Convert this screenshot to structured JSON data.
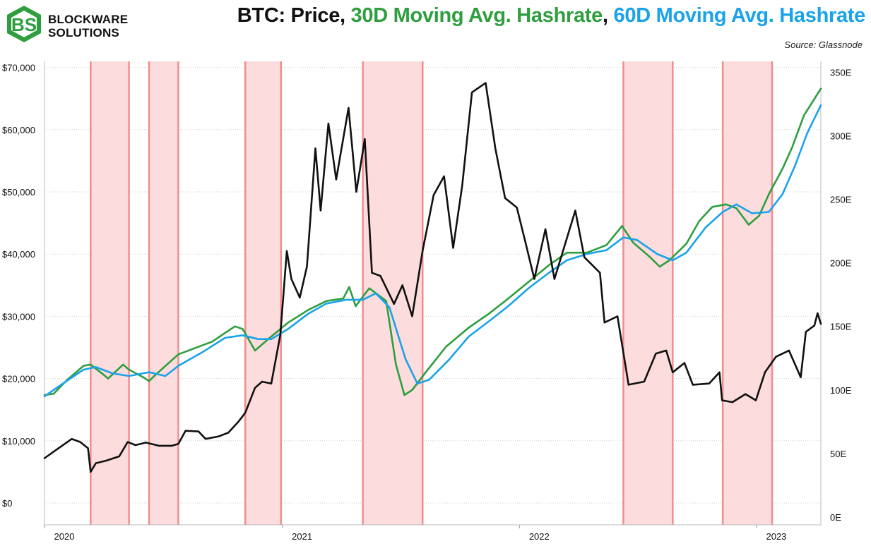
{
  "logo": {
    "line1": "BLOCKWARE",
    "line2": "SOLUTIONS"
  },
  "title": {
    "part1": "BTC: Price",
    "sep1": ", ",
    "part2": "30D Moving Avg. Hashrate",
    "sep2": ", ",
    "part3": "60D Moving Avg. Hashrate"
  },
  "source": "Source: Glassnode",
  "colors": {
    "price": "#111111",
    "hash30": "#2e9e3e",
    "hash60": "#1aa3e8",
    "shade": "#fcdcdc",
    "shade_edge": "#f08e8e"
  },
  "chart_data": {
    "type": "line",
    "title": "BTC: Price, 30D Moving Avg. Hashrate, 60D Moving Avg. Hashrate",
    "x_tick_labels": [
      "2020",
      "2021",
      "2022",
      "2023"
    ],
    "x_ticks": [
      "2020-01-01",
      "2021-01-01",
      "2022-01-01",
      "2023-01-01"
    ],
    "x_range": [
      "2020-01-01",
      "2023-04-10"
    ],
    "y_left": {
      "ticks": [
        0,
        10000,
        20000,
        30000,
        40000,
        50000,
        60000,
        70000
      ],
      "tick_labels": [
        "$0",
        "$10,000",
        "$20,000",
        "$30,000",
        "$40,000",
        "$50,000",
        "$60,000",
        "$70,000"
      ],
      "range": [
        0,
        70000
      ]
    },
    "y_right": {
      "ticks": [
        0,
        50,
        100,
        150,
        200,
        250,
        300,
        350
      ],
      "tick_labels": [
        "0E",
        "50E",
        "100E",
        "150E",
        "200E",
        "250E",
        "300E",
        "350E"
      ],
      "range": [
        0,
        350
      ]
    },
    "grid": "horizontal dotted",
    "shaded_periods": [
      [
        "2020-03-12",
        "2020-05-10"
      ],
      [
        "2020-06-10",
        "2020-07-25"
      ],
      [
        "2020-11-05",
        "2020-12-30"
      ],
      [
        "2021-05-05",
        "2021-08-05"
      ],
      [
        "2022-06-10",
        "2022-08-25"
      ],
      [
        "2022-11-10",
        "2023-01-25"
      ]
    ],
    "series": [
      {
        "name": "BTC: Price",
        "axis": "left",
        "color": "#111111",
        "points": [
          [
            "2020-01-01",
            7200
          ],
          [
            "2020-01-20",
            8600
          ],
          [
            "2020-02-12",
            10300
          ],
          [
            "2020-02-25",
            9800
          ],
          [
            "2020-03-08",
            8800
          ],
          [
            "2020-03-12",
            5000
          ],
          [
            "2020-03-20",
            6400
          ],
          [
            "2020-04-05",
            6800
          ],
          [
            "2020-04-25",
            7500
          ],
          [
            "2020-05-08",
            9800
          ],
          [
            "2020-05-20",
            9300
          ],
          [
            "2020-06-05",
            9700
          ],
          [
            "2020-06-25",
            9200
          ],
          [
            "2020-07-15",
            9200
          ],
          [
            "2020-07-25",
            9500
          ],
          [
            "2020-08-05",
            11600
          ],
          [
            "2020-08-25",
            11500
          ],
          [
            "2020-09-05",
            10300
          ],
          [
            "2020-09-25",
            10700
          ],
          [
            "2020-10-10",
            11300
          ],
          [
            "2020-10-25",
            13000
          ],
          [
            "2020-11-05",
            14500
          ],
          [
            "2020-11-20",
            18500
          ],
          [
            "2020-12-01",
            19500
          ],
          [
            "2020-12-15",
            19200
          ],
          [
            "2020-12-29",
            27000
          ],
          [
            "2021-01-08",
            40500
          ],
          [
            "2021-01-15",
            36000
          ],
          [
            "2021-01-28",
            33000
          ],
          [
            "2021-02-08",
            38000
          ],
          [
            "2021-02-21",
            57000
          ],
          [
            "2021-03-01",
            47000
          ],
          [
            "2021-03-13",
            61000
          ],
          [
            "2021-03-25",
            52000
          ],
          [
            "2021-04-13",
            63500
          ],
          [
            "2021-04-25",
            50000
          ],
          [
            "2021-05-08",
            58500
          ],
          [
            "2021-05-19",
            37000
          ],
          [
            "2021-06-01",
            36500
          ],
          [
            "2021-06-22",
            32000
          ],
          [
            "2021-07-05",
            35000
          ],
          [
            "2021-07-20",
            30000
          ],
          [
            "2021-08-05",
            40500
          ],
          [
            "2021-08-22",
            49500
          ],
          [
            "2021-09-07",
            52500
          ],
          [
            "2021-09-21",
            41000
          ],
          [
            "2021-10-05",
            51000
          ],
          [
            "2021-10-20",
            66000
          ],
          [
            "2021-11-10",
            67500
          ],
          [
            "2021-11-25",
            57000
          ],
          [
            "2021-12-10",
            49000
          ],
          [
            "2021-12-28",
            47500
          ],
          [
            "2022-01-10",
            42000
          ],
          [
            "2022-01-24",
            36000
          ],
          [
            "2022-02-10",
            44000
          ],
          [
            "2022-02-24",
            36000
          ],
          [
            "2022-03-28",
            47000
          ],
          [
            "2022-04-11",
            39500
          ],
          [
            "2022-05-05",
            37000
          ],
          [
            "2022-05-12",
            29000
          ],
          [
            "2022-06-01",
            30000
          ],
          [
            "2022-06-18",
            19000
          ],
          [
            "2022-07-12",
            19500
          ],
          [
            "2022-07-30",
            24000
          ],
          [
            "2022-08-15",
            24500
          ],
          [
            "2022-08-25",
            21000
          ],
          [
            "2022-09-12",
            22500
          ],
          [
            "2022-09-25",
            19000
          ],
          [
            "2022-10-20",
            19200
          ],
          [
            "2022-11-05",
            21000
          ],
          [
            "2022-11-09",
            16500
          ],
          [
            "2022-11-25",
            16200
          ],
          [
            "2022-12-15",
            17500
          ],
          [
            "2022-12-31",
            16500
          ],
          [
            "2023-01-14",
            21000
          ],
          [
            "2023-01-31",
            23500
          ],
          [
            "2023-02-20",
            24500
          ],
          [
            "2023-03-10",
            20200
          ],
          [
            "2023-03-18",
            27500
          ],
          [
            "2023-03-31",
            28500
          ],
          [
            "2023-04-05",
            30500
          ],
          [
            "2023-04-10",
            28800
          ]
        ]
      },
      {
        "name": "30D Moving Avg. Hashrate",
        "axis": "right",
        "color": "#2e9e3e",
        "points": [
          [
            "2020-01-01",
            96
          ],
          [
            "2020-01-15",
            97
          ],
          [
            "2020-02-05",
            108
          ],
          [
            "2020-03-01",
            119
          ],
          [
            "2020-03-12",
            120
          ],
          [
            "2020-04-01",
            112
          ],
          [
            "2020-04-08",
            109
          ],
          [
            "2020-05-01",
            120
          ],
          [
            "2020-05-10",
            116
          ],
          [
            "2020-06-01",
            110
          ],
          [
            "2020-06-10",
            107
          ],
          [
            "2020-06-20",
            112
          ],
          [
            "2020-07-25",
            128
          ],
          [
            "2020-08-20",
            133
          ],
          [
            "2020-09-15",
            138
          ],
          [
            "2020-10-20",
            150
          ],
          [
            "2020-11-01",
            148
          ],
          [
            "2020-11-20",
            131
          ],
          [
            "2020-12-15",
            142
          ],
          [
            "2021-01-10",
            153
          ],
          [
            "2021-02-10",
            163
          ],
          [
            "2021-03-10",
            170
          ],
          [
            "2021-04-05",
            172
          ],
          [
            "2021-04-14",
            181
          ],
          [
            "2021-04-24",
            166
          ],
          [
            "2021-05-15",
            180
          ],
          [
            "2021-06-10",
            170
          ],
          [
            "2021-06-25",
            120
          ],
          [
            "2021-07-08",
            96
          ],
          [
            "2021-07-20",
            100
          ],
          [
            "2021-08-10",
            114
          ],
          [
            "2021-09-10",
            134
          ],
          [
            "2021-10-15",
            149
          ],
          [
            "2021-11-15",
            160
          ],
          [
            "2021-12-15",
            172
          ],
          [
            "2022-01-15",
            185
          ],
          [
            "2022-02-15",
            198
          ],
          [
            "2022-03-15",
            208
          ],
          [
            "2022-04-15",
            208
          ],
          [
            "2022-05-15",
            214
          ],
          [
            "2022-06-08",
            229
          ],
          [
            "2022-06-25",
            216
          ],
          [
            "2022-07-20",
            205
          ],
          [
            "2022-08-05",
            197
          ],
          [
            "2022-08-20",
            202
          ],
          [
            "2022-09-15",
            215
          ],
          [
            "2022-10-05",
            233
          ],
          [
            "2022-10-25",
            244
          ],
          [
            "2022-11-15",
            246
          ],
          [
            "2022-12-01",
            243
          ],
          [
            "2022-12-20",
            230
          ],
          [
            "2023-01-05",
            237
          ],
          [
            "2023-01-20",
            254
          ],
          [
            "2023-02-10",
            274
          ],
          [
            "2023-02-25",
            291
          ],
          [
            "2023-03-15",
            316
          ],
          [
            "2023-04-10",
            337
          ]
        ]
      },
      {
        "name": "60D Moving Avg. Hashrate",
        "axis": "right",
        "color": "#1aa3e8",
        "points": [
          [
            "2020-01-01",
            95
          ],
          [
            "2020-02-01",
            106
          ],
          [
            "2020-03-01",
            116
          ],
          [
            "2020-03-20",
            118
          ],
          [
            "2020-04-15",
            113
          ],
          [
            "2020-05-10",
            111
          ],
          [
            "2020-06-10",
            114
          ],
          [
            "2020-07-05",
            111
          ],
          [
            "2020-07-25",
            119
          ],
          [
            "2020-09-01",
            130
          ],
          [
            "2020-10-05",
            141
          ],
          [
            "2020-11-01",
            143
          ],
          [
            "2020-11-25",
            140
          ],
          [
            "2020-12-15",
            140
          ],
          [
            "2021-01-10",
            148
          ],
          [
            "2021-02-10",
            160
          ],
          [
            "2021-03-10",
            168
          ],
          [
            "2021-04-10",
            171
          ],
          [
            "2021-05-05",
            171
          ],
          [
            "2021-05-25",
            176
          ],
          [
            "2021-06-15",
            165
          ],
          [
            "2021-07-10",
            124
          ],
          [
            "2021-07-28",
            105
          ],
          [
            "2021-08-15",
            108
          ],
          [
            "2021-09-15",
            124
          ],
          [
            "2021-10-15",
            142
          ],
          [
            "2021-11-15",
            154
          ],
          [
            "2021-12-15",
            166
          ],
          [
            "2022-01-15",
            180
          ],
          [
            "2022-02-15",
            192
          ],
          [
            "2022-03-15",
            202
          ],
          [
            "2022-04-15",
            207
          ],
          [
            "2022-05-15",
            210
          ],
          [
            "2022-06-10",
            220
          ],
          [
            "2022-07-01",
            218
          ],
          [
            "2022-08-01",
            207
          ],
          [
            "2022-08-25",
            202
          ],
          [
            "2022-09-15",
            208
          ],
          [
            "2022-10-15",
            228
          ],
          [
            "2022-11-10",
            240
          ],
          [
            "2022-12-01",
            246
          ],
          [
            "2022-12-25",
            239
          ],
          [
            "2023-01-20",
            240
          ],
          [
            "2023-02-10",
            254
          ],
          [
            "2023-03-01",
            276
          ],
          [
            "2023-03-20",
            302
          ],
          [
            "2023-04-10",
            324
          ]
        ]
      }
    ]
  }
}
